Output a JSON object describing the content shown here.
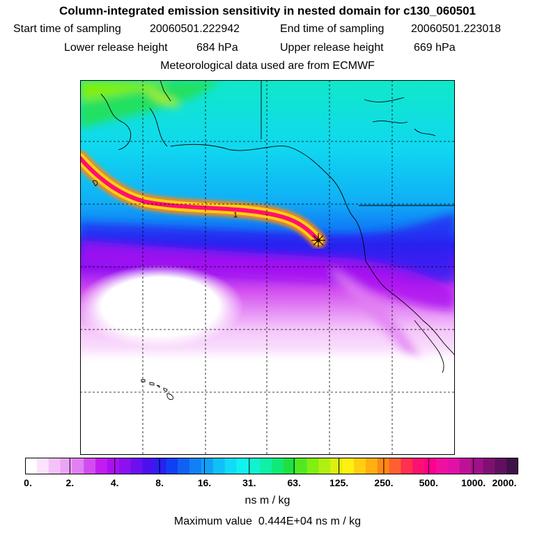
{
  "title": "Column-integrated emission sensitivity in nested domain for c130_060501",
  "sampling": {
    "start_label": "Start time of sampling",
    "start_value": "20060501.222942",
    "end_label": "End time of sampling",
    "end_value": "20060501.223018"
  },
  "release": {
    "lower_label": "Lower release height",
    "lower_value": "684 hPa",
    "upper_label": "Upper release height",
    "upper_value": "669 hPa"
  },
  "meteo_note": "Meteorological data used are from ECMWF",
  "map": {
    "contour_label": "1",
    "release_marker": "release-point"
  },
  "colorbar": {
    "ticks": [
      "0.",
      "2.",
      "4.",
      "8.",
      "16.",
      "31.",
      "63.",
      "125.",
      "250.",
      "500.",
      "1000.",
      "2000."
    ],
    "units": "ns m / kg",
    "colors": [
      "#ffffff",
      "#fbe2fd",
      "#f4c2fa",
      "#eca4f6",
      "#e080f2",
      "#d24cf0",
      "#c21cf0",
      "#aa10f0",
      "#8c10f2",
      "#6c10f0",
      "#4a10f0",
      "#2a20f2",
      "#1040f4",
      "#1060f4",
      "#1080f6",
      "#10a0f8",
      "#10c0f8",
      "#10dcf8",
      "#10f2f0",
      "#10f2d0",
      "#10f0a8",
      "#10e878",
      "#20e040",
      "#50e820",
      "#80f010",
      "#b0f010",
      "#dcf010",
      "#fff010",
      "#ffd010",
      "#ffb010",
      "#ff8810",
      "#ff6030",
      "#ff3050",
      "#ff1070",
      "#ff0090",
      "#f010a0",
      "#e010a8",
      "#c01098",
      "#a01088",
      "#801070",
      "#601060",
      "#401048"
    ]
  },
  "max_value": {
    "label": "Maximum value",
    "value": "0.444E+04",
    "units": "ns m / kg"
  }
}
